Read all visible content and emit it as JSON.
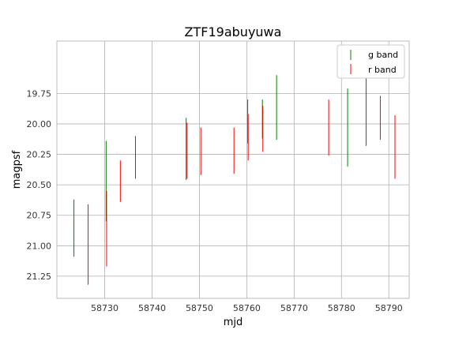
{
  "chart_data": {
    "type": "errorbar",
    "title": "ZTF19abuyuwa",
    "xlabel": "mjd",
    "ylabel": "magpsf",
    "xlim": [
      58719.9,
      58794.3
    ],
    "ylim": [
      21.432,
      19.32
    ],
    "y_inverted": true,
    "grid": true,
    "legend_position": "top-right",
    "x_ticks": [
      58730,
      58740,
      58750,
      58760,
      58770,
      58780,
      58790
    ],
    "x_tick_labels": [
      "58730",
      "58740",
      "58750",
      "58760",
      "58770",
      "58780",
      "58790"
    ],
    "y_ticks": [
      19.75,
      20.0,
      20.25,
      20.5,
      20.75,
      21.0,
      21.25
    ],
    "y_tick_labels": [
      "19.75",
      "20.00",
      "20.25",
      "20.50",
      "20.75",
      "21.00",
      "21.25"
    ],
    "series": [
      {
        "name": "g band",
        "color": "#008000",
        "points": [
          {
            "x": 58723.5,
            "ylow": 20.62,
            "yhigh": 21.09
          },
          {
            "x": 58730.3,
            "ylow": 20.14,
            "yhigh": 20.8
          },
          {
            "x": 58736.5,
            "ylow": 20.1,
            "yhigh": 20.45
          },
          {
            "x": 58747.2,
            "ylow": 19.95,
            "yhigh": 20.46
          },
          {
            "x": 58760.2,
            "ylow": 19.8,
            "yhigh": 20.16
          },
          {
            "x": 58763.3,
            "ylow": 19.8,
            "yhigh": 20.12
          },
          {
            "x": 58766.3,
            "ylow": 19.6,
            "yhigh": 20.13
          },
          {
            "x": 58781.3,
            "ylow": 19.71,
            "yhigh": 20.35
          },
          {
            "x": 58785.2,
            "ylow": 19.62,
            "yhigh": 20.18
          }
        ]
      },
      {
        "name": "r band",
        "color": "#ff0000",
        "points": [
          {
            "x": 58726.5,
            "ylow": 20.66,
            "yhigh": 21.32
          },
          {
            "x": 58730.4,
            "ylow": 20.55,
            "yhigh": 21.17
          },
          {
            "x": 58733.3,
            "ylow": 20.3,
            "yhigh": 20.64
          },
          {
            "x": 58747.4,
            "ylow": 19.99,
            "yhigh": 20.45
          },
          {
            "x": 58750.3,
            "ylow": 20.03,
            "yhigh": 20.42
          },
          {
            "x": 58757.3,
            "ylow": 20.03,
            "yhigh": 20.41
          },
          {
            "x": 58760.3,
            "ylow": 19.92,
            "yhigh": 20.3
          },
          {
            "x": 58763.4,
            "ylow": 19.85,
            "yhigh": 20.23
          },
          {
            "x": 58777.3,
            "ylow": 19.8,
            "yhigh": 20.26
          },
          {
            "x": 58788.2,
            "ylow": 19.77,
            "yhigh": 20.13
          },
          {
            "x": 58791.3,
            "ylow": 19.93,
            "yhigh": 20.45
          }
        ]
      }
    ]
  }
}
